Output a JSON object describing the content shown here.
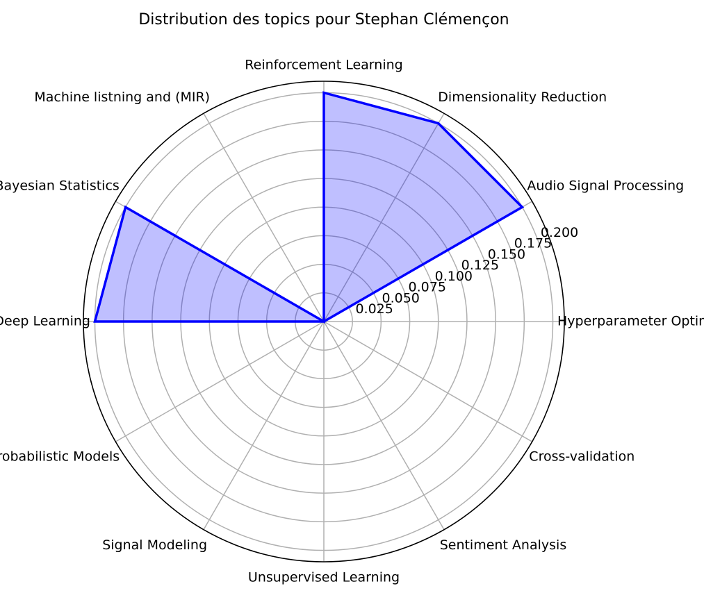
{
  "chart_data": {
    "type": "radar",
    "title": "Distribution des topics pour Stephan Clémençon",
    "categories": [
      "Hyperparameter Optimization",
      "Audio Signal Processing",
      "Dimensionality Reduction",
      "Reinforcement Learning",
      "Machine listning and (MIR)",
      "Bayesian Statistics",
      "Deep Learning",
      "Probabilistic Models",
      "Signal Modeling",
      "Unsupervised Learning",
      "Sentiment Analysis",
      "Cross-validation"
    ],
    "values": [
      0.0,
      0.2,
      0.2,
      0.2,
      0.0,
      0.2,
      0.2,
      0.0,
      0.0,
      0.0,
      0.0,
      0.0
    ],
    "rlim": [
      0,
      0.21
    ],
    "radial_ticks": [
      0.025,
      0.05,
      0.075,
      0.1,
      0.125,
      0.15,
      0.175,
      0.2
    ],
    "radial_tick_labels": [
      "0.025",
      "0.050",
      "0.075",
      "0.100",
      "0.125",
      "0.150",
      "0.175",
      "0.200"
    ],
    "grid": true,
    "colors": {
      "line": "#0000ff",
      "fill": "#0000ff",
      "grid": "#b0b0b0",
      "frame": "#000000"
    }
  }
}
